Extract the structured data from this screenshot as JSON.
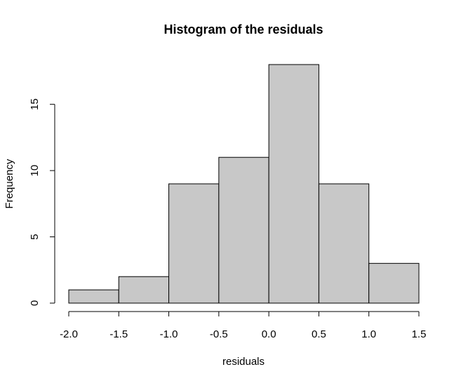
{
  "chart_data": {
    "type": "bar",
    "subtype": "histogram",
    "title": "Histogram of the residuals",
    "xlabel": "residuals",
    "ylabel": "Frequency",
    "bins": [
      {
        "start": -2.0,
        "end": -1.5,
        "count": 1
      },
      {
        "start": -1.5,
        "end": -1.0,
        "count": 2
      },
      {
        "start": -1.0,
        "end": -0.5,
        "count": 9
      },
      {
        "start": -0.5,
        "end": 0.0,
        "count": 11
      },
      {
        "start": 0.0,
        "end": 0.5,
        "count": 18
      },
      {
        "start": 0.5,
        "end": 1.0,
        "count": 9
      },
      {
        "start": 1.0,
        "end": 1.5,
        "count": 3
      }
    ],
    "xlim": [
      -2.0,
      1.5
    ],
    "ylim": [
      0,
      18
    ],
    "xticks": [
      -2.0,
      -1.5,
      -1.0,
      -0.5,
      0.0,
      0.5,
      1.0,
      1.5
    ],
    "xtick_labels": [
      "-2.0",
      "-1.5",
      "-1.0",
      "-0.5",
      "0.0",
      "0.5",
      "1.0",
      "1.5"
    ],
    "yticks": [
      0,
      5,
      10,
      15
    ],
    "ytick_labels": [
      "0",
      "5",
      "10",
      "15"
    ],
    "bar_color": "#c8c8c8",
    "edge_color": "#000000",
    "grid": false
  }
}
